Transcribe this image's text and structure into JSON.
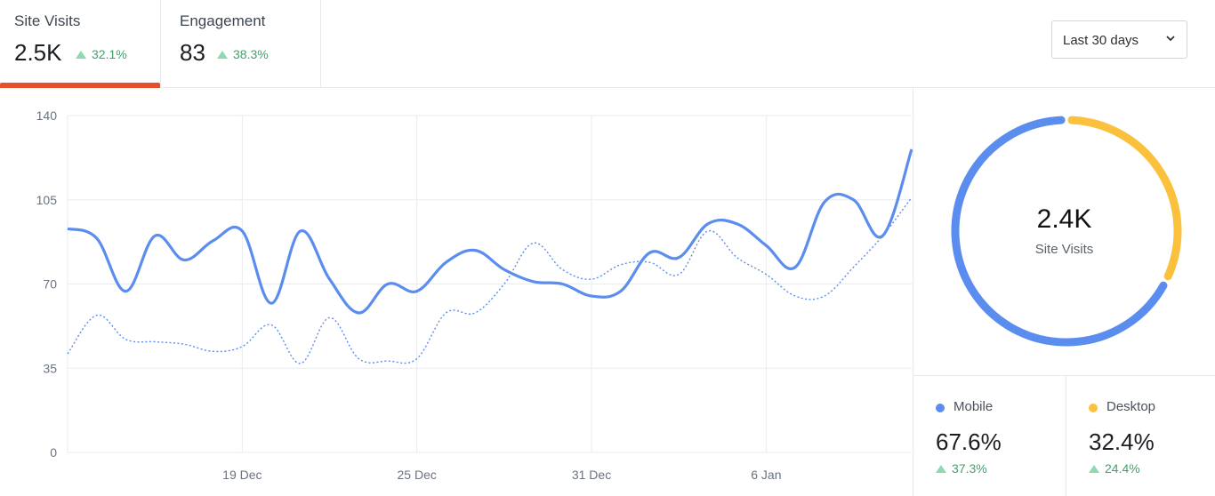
{
  "tabs": [
    {
      "name": "Site Visits",
      "value": "2.5K",
      "change": "32.1%"
    },
    {
      "name": "Engagement",
      "value": "83",
      "change": "38.3%"
    }
  ],
  "range_select": {
    "label": "Last 30 days"
  },
  "colors": {
    "primary": "#5b8def",
    "secondary": "#fbc13d",
    "up": "#3fa36a",
    "active_tab": "#e8502d"
  },
  "chart_data": {
    "type": "line",
    "x_labels": [
      "19 Dec",
      "25 Dec",
      "31 Dec",
      "6 Jan"
    ],
    "y_ticks": [
      0,
      35,
      70,
      105,
      140
    ],
    "ylim": [
      0,
      140
    ],
    "grid": true,
    "series": [
      {
        "style": "solid",
        "color": "#5b8def",
        "values": [
          93,
          89,
          67,
          90,
          80,
          88,
          92,
          62,
          92,
          72,
          58,
          70,
          67,
          79,
          84,
          76,
          71,
          70,
          65,
          67,
          83,
          81,
          95,
          95,
          86,
          77,
          104,
          105,
          90,
          126
        ]
      },
      {
        "style": "dotted",
        "color": "#5b8def",
        "values": [
          41,
          57,
          47,
          46,
          45,
          42,
          44,
          53,
          37,
          56,
          39,
          38,
          39,
          58,
          58,
          70,
          87,
          76,
          72,
          78,
          79,
          74,
          92,
          81,
          74,
          65,
          65,
          77,
          90,
          106
        ]
      }
    ]
  },
  "donut": {
    "value": "2.4K",
    "label": "Site Visits",
    "slices": [
      {
        "name": "Mobile",
        "percent": "67.6%",
        "change": "37.3%",
        "fraction": 0.676,
        "color": "#5b8def"
      },
      {
        "name": "Desktop",
        "percent": "32.4%",
        "change": "24.4%",
        "fraction": 0.324,
        "color": "#fbc13d"
      }
    ]
  }
}
